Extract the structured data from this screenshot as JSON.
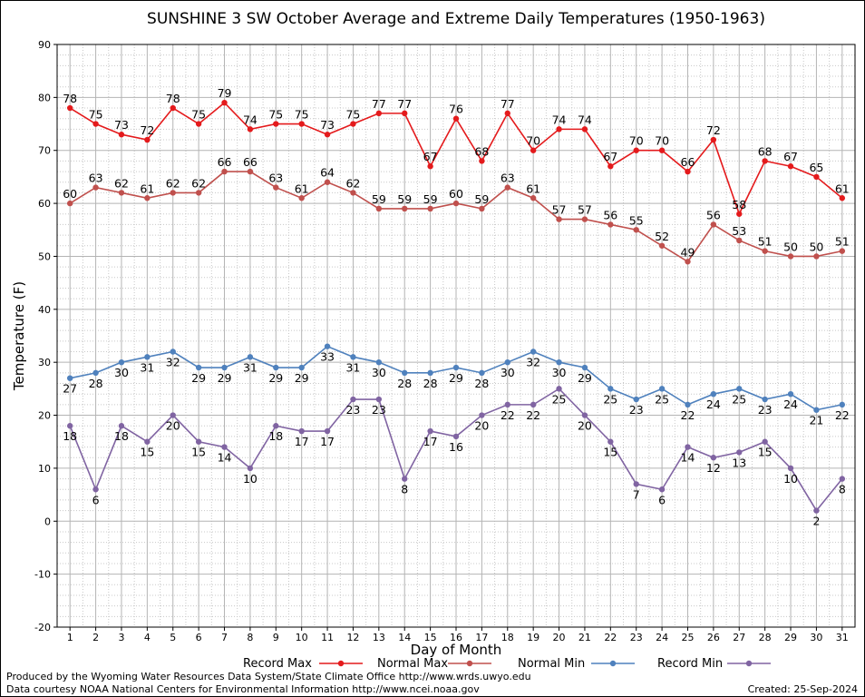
{
  "chart_data": {
    "type": "line",
    "title": "SUNSHINE 3 SW October Average and Extreme Daily Temperatures (1950-1963)",
    "xlabel": "Day of Month",
    "ylabel": "Temperature (F)",
    "xlim": [
      1,
      31
    ],
    "ylim": [
      -20,
      90
    ],
    "yticks": [
      -20,
      -10,
      0,
      10,
      20,
      30,
      40,
      50,
      60,
      70,
      80,
      90
    ],
    "x": [
      1,
      2,
      3,
      4,
      5,
      6,
      7,
      8,
      9,
      10,
      11,
      12,
      13,
      14,
      15,
      16,
      17,
      18,
      19,
      20,
      21,
      22,
      23,
      24,
      25,
      26,
      27,
      28,
      29,
      30,
      31
    ],
    "grid": true,
    "legend_position": "bottom",
    "series": [
      {
        "name": "Record Max",
        "color": "#e41a1c",
        "label_pos": "above",
        "values": [
          78,
          75,
          73,
          72,
          78,
          75,
          79,
          74,
          75,
          75,
          73,
          75,
          77,
          77,
          67,
          76,
          68,
          77,
          70,
          74,
          74,
          67,
          70,
          70,
          66,
          72,
          58,
          68,
          67,
          65,
          61
        ]
      },
      {
        "name": "Normal Max",
        "color": "#c0504d",
        "label_pos": "above",
        "values": [
          60,
          63,
          62,
          61,
          62,
          62,
          66,
          66,
          63,
          61,
          64,
          62,
          59,
          59,
          59,
          60,
          59,
          63,
          61,
          57,
          57,
          56,
          55,
          52,
          49,
          56,
          53,
          51,
          50,
          50,
          51
        ]
      },
      {
        "name": "Normal Min",
        "color": "#4f81bd",
        "label_pos": "below",
        "values": [
          27,
          28,
          30,
          31,
          32,
          29,
          29,
          31,
          29,
          29,
          33,
          31,
          30,
          28,
          28,
          29,
          28,
          30,
          32,
          30,
          29,
          25,
          23,
          25,
          22,
          24,
          25,
          23,
          24,
          21,
          22
        ]
      },
      {
        "name": "Record Min",
        "color": "#8064a2",
        "label_pos": "below",
        "values": [
          18,
          6,
          18,
          15,
          20,
          15,
          14,
          10,
          18,
          17,
          17,
          23,
          23,
          8,
          17,
          16,
          20,
          22,
          22,
          25,
          20,
          15,
          7,
          6,
          14,
          12,
          13,
          15,
          10,
          2,
          8
        ]
      }
    ]
  },
  "footer": {
    "producer": "Produced by the Wyoming Water Resources Data System/State Climate Office http://www.wrds.uwyo.edu",
    "source": "Data courtesy NOAA National Centers for Environmental Information http://www.ncei.noaa.gov",
    "created": "Created: 25-Sep-2024"
  }
}
